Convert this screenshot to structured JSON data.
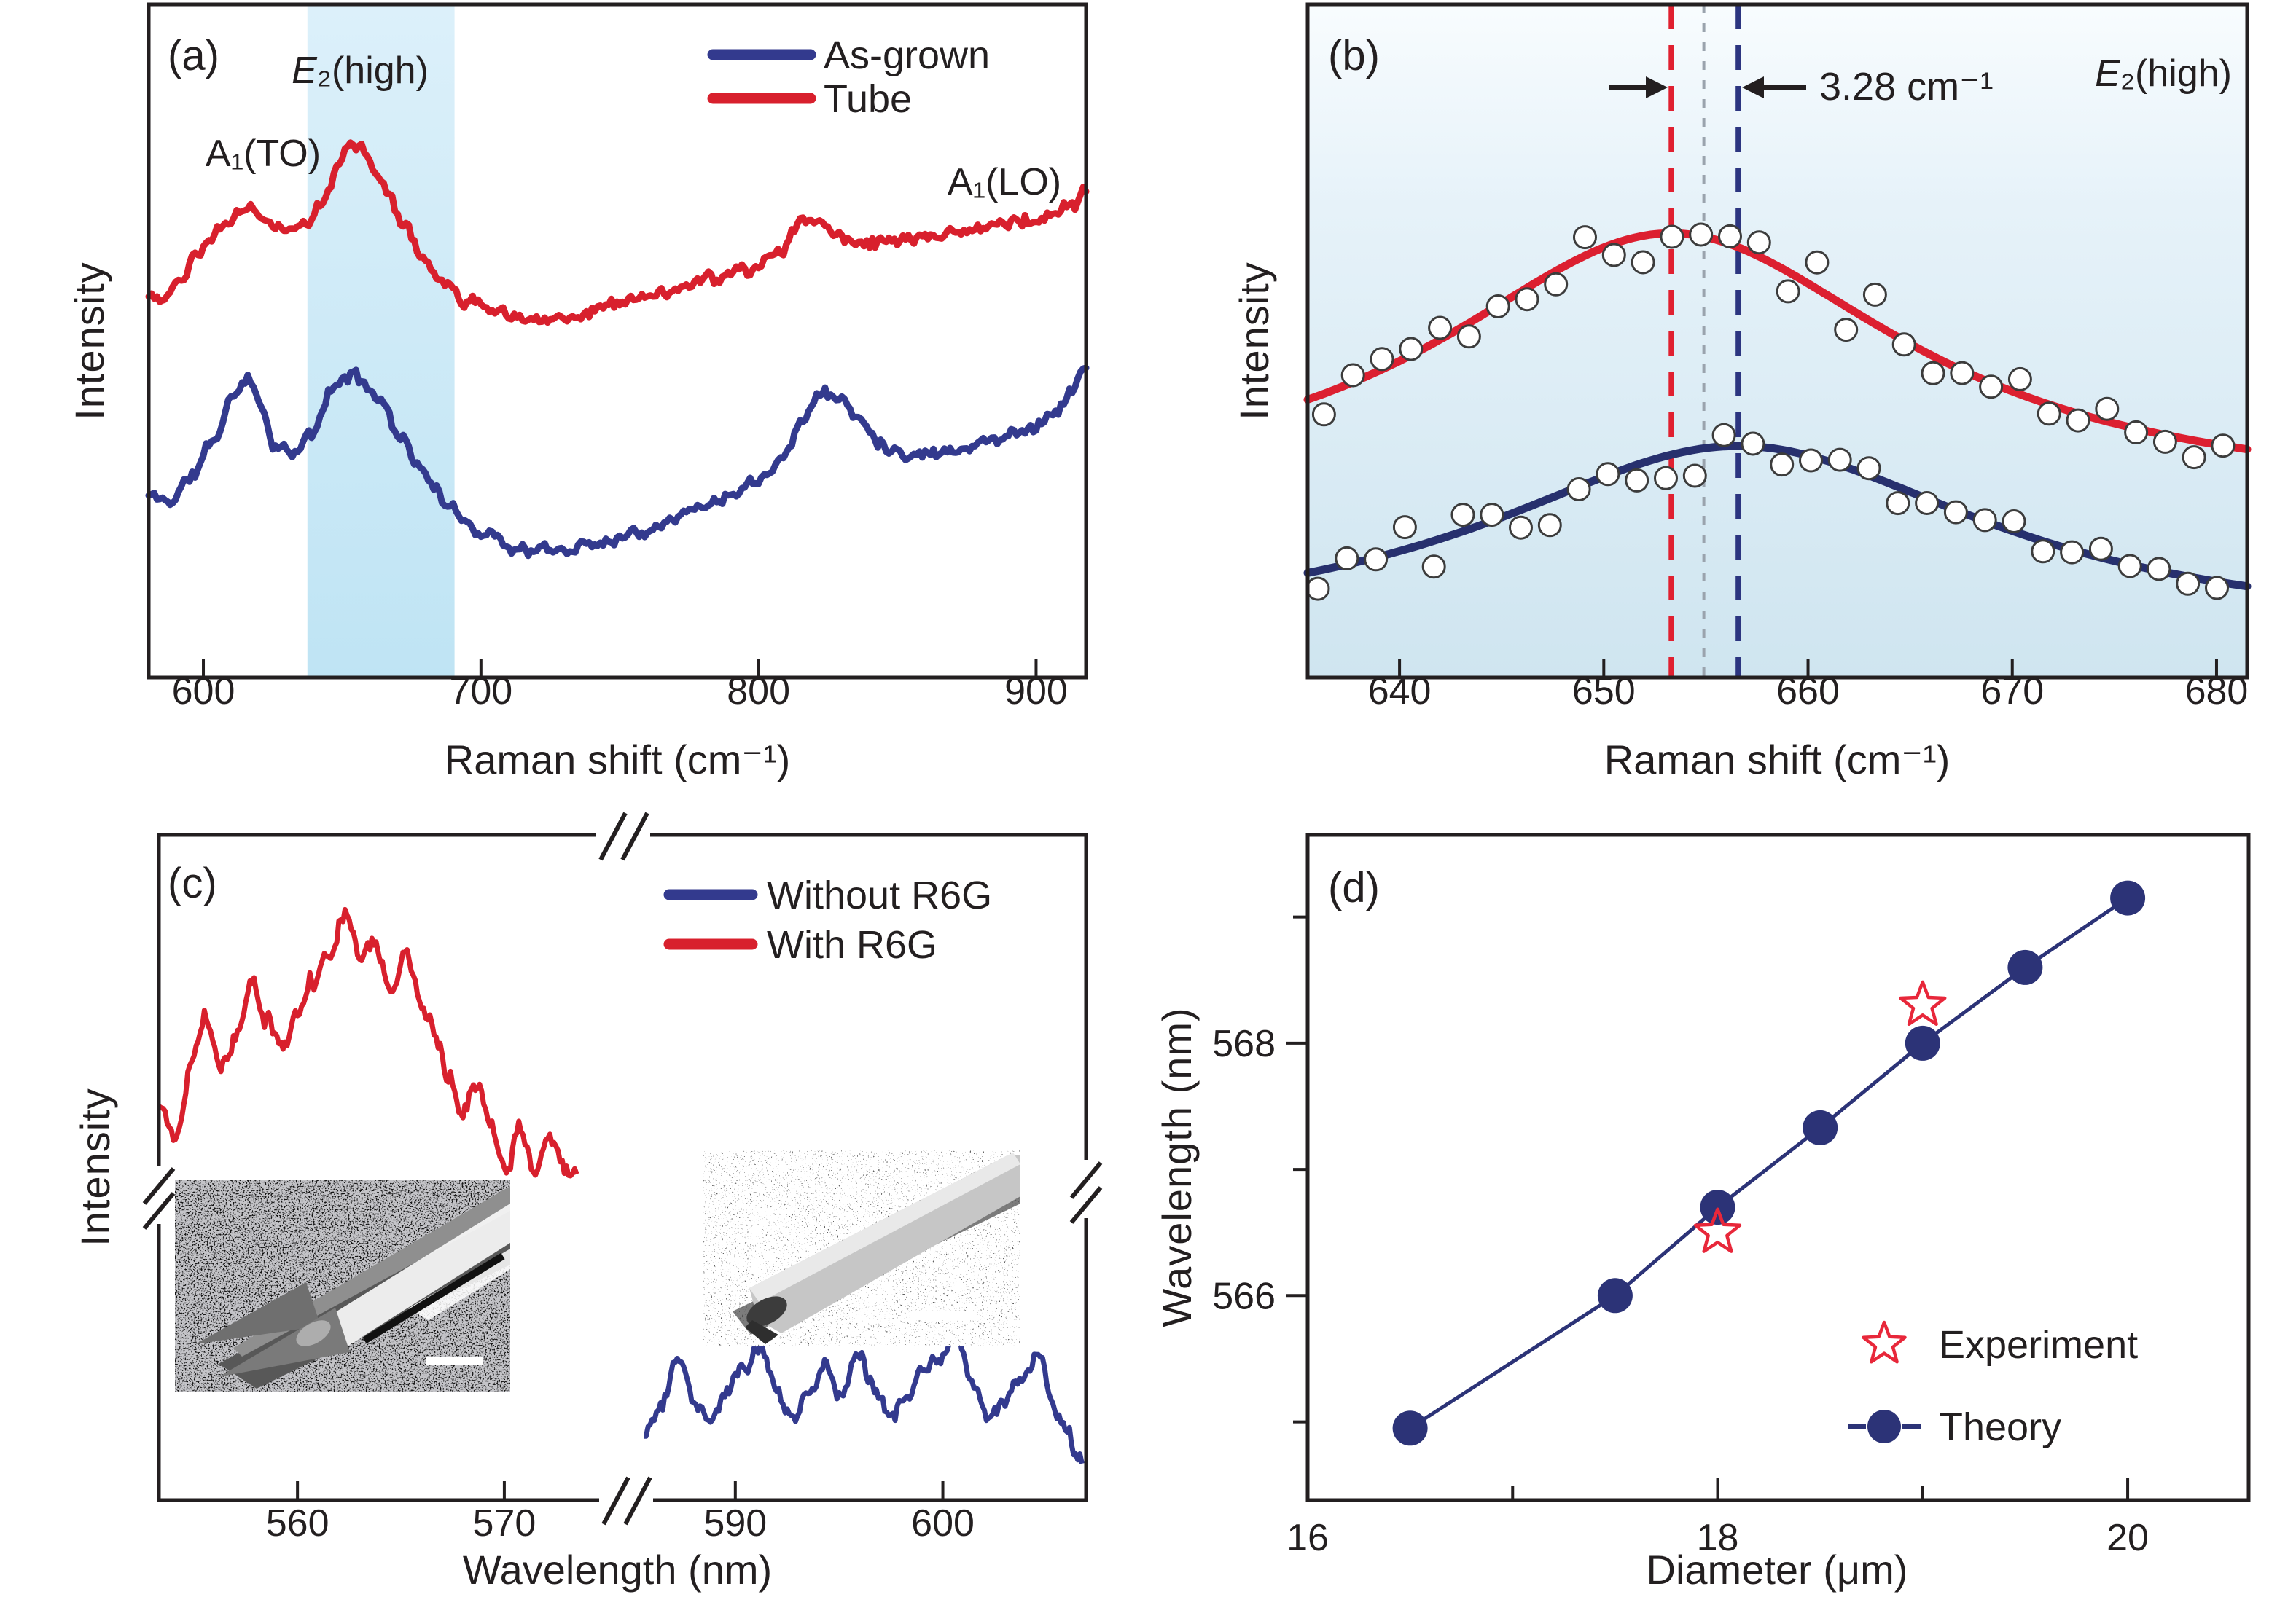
{
  "figure_background": "#ffffff",
  "text_color": "#231f20",
  "chart_data": [
    {
      "id": "a",
      "type": "line",
      "panel_label": "(a)",
      "xlabel": "Raman shift (cm⁻¹)",
      "ylabel": "Intensity",
      "x_range": [
        580.3,
        918
      ],
      "x_ticks": [
        {
          "v": 600,
          "label": "600"
        },
        {
          "v": 700,
          "label": "700"
        },
        {
          "v": 800,
          "label": "800"
        },
        {
          "v": 900,
          "label": "900"
        }
      ],
      "grid": false,
      "highlight_band": {
        "x0": 637.5,
        "x1": 690.5,
        "color_top": "#dcf0fa",
        "color_bottom": "#bfe4f4"
      },
      "peak_labels": {
        "a1to": "A₁(TO)",
        "e2_italic": "E",
        "e2_rest": "₂(high)",
        "a1lo": "A₁(LO)"
      },
      "legend": [
        {
          "label": "As-grown",
          "color": "#333a8e"
        },
        {
          "label": "Tube",
          "color": "#d8202d"
        }
      ],
      "series": [
        {
          "name": "As-grown",
          "color": "#333a8e",
          "width": 9,
          "seed": 11,
          "noise": 0.013,
          "control_points": [
            [
              580.3,
              0.27
            ],
            [
              588,
              0.262
            ],
            [
              596,
              0.3
            ],
            [
              604,
              0.355
            ],
            [
              611,
              0.42
            ],
            [
              616,
              0.45
            ],
            [
              621,
              0.4
            ],
            [
              626,
              0.345
            ],
            [
              632,
              0.33
            ],
            [
              639,
              0.36
            ],
            [
              646,
              0.425
            ],
            [
              652,
              0.45
            ],
            [
              658,
              0.44
            ],
            [
              664,
              0.41
            ],
            [
              671,
              0.36
            ],
            [
              680,
              0.3
            ],
            [
              690,
              0.245
            ],
            [
              702,
              0.215
            ],
            [
              714,
              0.19
            ],
            [
              727,
              0.188
            ],
            [
              741,
              0.2
            ],
            [
              755,
              0.215
            ],
            [
              770,
              0.24
            ],
            [
              784,
              0.262
            ],
            [
              797,
              0.29
            ],
            [
              808,
              0.325
            ],
            [
              817,
              0.39
            ],
            [
              823,
              0.425
            ],
            [
              829,
              0.415
            ],
            [
              836,
              0.385
            ],
            [
              844,
              0.35
            ],
            [
              853,
              0.332
            ],
            [
              863,
              0.335
            ],
            [
              874,
              0.342
            ],
            [
              886,
              0.355
            ],
            [
              898,
              0.372
            ],
            [
              907,
              0.395
            ],
            [
              913,
              0.425
            ],
            [
              918,
              0.46
            ]
          ]
        },
        {
          "name": "Tube",
          "color": "#d8202d",
          "width": 9,
          "seed": 23,
          "noise": 0.013,
          "control_points": [
            [
              580.3,
              0.575
            ],
            [
              585,
              0.558
            ],
            [
              591,
              0.585
            ],
            [
              598,
              0.625
            ],
            [
              606,
              0.665
            ],
            [
              612,
              0.69
            ],
            [
              617,
              0.7
            ],
            [
              621,
              0.685
            ],
            [
              626,
              0.665
            ],
            [
              631,
              0.662
            ],
            [
              637,
              0.68
            ],
            [
              643,
              0.71
            ],
            [
              649,
              0.765
            ],
            [
              653,
              0.795
            ],
            [
              656,
              0.79
            ],
            [
              661,
              0.755
            ],
            [
              666,
              0.725
            ],
            [
              672,
              0.675
            ],
            [
              679,
              0.625
            ],
            [
              686,
              0.585
            ],
            [
              694,
              0.56
            ],
            [
              703,
              0.548
            ],
            [
              713,
              0.538
            ],
            [
              723,
              0.532
            ],
            [
              734,
              0.54
            ],
            [
              746,
              0.552
            ],
            [
              758,
              0.565
            ],
            [
              771,
              0.578
            ],
            [
              784,
              0.59
            ],
            [
              797,
              0.605
            ],
            [
              808,
              0.64
            ],
            [
              816,
              0.672
            ],
            [
              821,
              0.68
            ],
            [
              827,
              0.662
            ],
            [
              835,
              0.648
            ],
            [
              845,
              0.648
            ],
            [
              856,
              0.655
            ],
            [
              867,
              0.658
            ],
            [
              878,
              0.668
            ],
            [
              890,
              0.675
            ],
            [
              900,
              0.682
            ],
            [
              908,
              0.692
            ],
            [
              914,
              0.705
            ],
            [
              918,
              0.722
            ]
          ]
        }
      ]
    },
    {
      "id": "b",
      "type": "scatter-fit",
      "panel_label": "(b)",
      "xlabel": "Raman shift (cm⁻¹)",
      "ylabel": "Intensity",
      "x_range": [
        635.5,
        681.5
      ],
      "x_ticks": [
        {
          "v": 640,
          "label": "640"
        },
        {
          "v": 650,
          "label": "650"
        },
        {
          "v": 660,
          "label": "660"
        },
        {
          "v": 670,
          "label": "670"
        },
        {
          "v": 680,
          "label": "680"
        }
      ],
      "corner_label": {
        "e2_italic": "E",
        "e2_rest": "₂(high)"
      },
      "peak_shift": {
        "label": "3.28 cm⁻¹",
        "value_cm": 3.28
      },
      "background_gradient": [
        "#f8fcfe",
        "#e6f2f9",
        "#cfe5f0"
      ],
      "vlines": [
        {
          "x": 653.3,
          "color": "#e02030",
          "dash": "34 22",
          "width": 7,
          "name": "tube-peak-dashed-line"
        },
        {
          "x": 654.9,
          "color": "#9aa3ad",
          "dash": "12 14",
          "width": 4,
          "name": "reference-dotted-line"
        },
        {
          "x": 656.58,
          "color": "#2c3580",
          "dash": "34 22",
          "width": 7,
          "name": "asgrown-peak-dashed-line"
        }
      ],
      "marker": {
        "shape": "circle",
        "radius": 15,
        "stroke": "#3c3c3c",
        "fill": "#ffffff"
      },
      "series": [
        {
          "name": "Tube fit",
          "color": "#dc1f30",
          "width": 11,
          "lorentzian": {
            "center": 653.3,
            "gamma": 14,
            "amp": 0.4,
            "base": 0.26
          },
          "scatter": {
            "x_start": 636.3,
            "x_step": 1.42,
            "count": 32,
            "seed": 19,
            "jitter": 0.05
          }
        },
        {
          "name": "As-grown fit",
          "color": "#27306e",
          "width": 11,
          "lorentzian": {
            "center": 656.58,
            "gamma": 15,
            "amp": 0.284,
            "base": 0.06
          },
          "scatter": {
            "x_start": 636.0,
            "x_step": 1.42,
            "count": 32,
            "seed": 77,
            "jitter": 0.05
          }
        }
      ]
    },
    {
      "id": "c",
      "type": "line",
      "panel_label": "(c)",
      "xlabel": "Wavelength (nm)",
      "ylabel": "Intensity",
      "axis_breaks": true,
      "segments": [
        {
          "x_range": [
            553.3,
            575.5
          ]
        },
        {
          "x_range": [
            585.3,
            606.9
          ]
        }
      ],
      "x_ticks": [
        {
          "seg": 0,
          "v": 560,
          "label": "560"
        },
        {
          "seg": 0,
          "v": 570,
          "label": "570"
        },
        {
          "seg": 1,
          "v": 590,
          "label": "590"
        },
        {
          "seg": 1,
          "v": 600,
          "label": "600"
        }
      ],
      "legend": [
        {
          "label": "Without R6G",
          "color": "#333a8e"
        },
        {
          "label": "With R6G",
          "color": "#d8202d"
        }
      ],
      "series": [
        {
          "name": "With R6G",
          "seg": 0,
          "color": "#d8202d",
          "width": 7,
          "seed": 41,
          "noise": 0.02,
          "control_points": [
            [
              553.3,
              0.585
            ],
            [
              554.1,
              0.545
            ],
            [
              554.9,
              0.665
            ],
            [
              555.6,
              0.73
            ],
            [
              556.3,
              0.645
            ],
            [
              557.1,
              0.7
            ],
            [
              557.8,
              0.775
            ],
            [
              558.5,
              0.72
            ],
            [
              559.3,
              0.685
            ],
            [
              560.1,
              0.73
            ],
            [
              560.8,
              0.785
            ],
            [
              561.6,
              0.83
            ],
            [
              562.3,
              0.885
            ],
            [
              563.1,
              0.81
            ],
            [
              563.8,
              0.835
            ],
            [
              564.5,
              0.765
            ],
            [
              565.2,
              0.825
            ],
            [
              565.9,
              0.755
            ],
            [
              566.6,
              0.705
            ],
            [
              567.3,
              0.645
            ],
            [
              568.0,
              0.585
            ],
            [
              568.7,
              0.625
            ],
            [
              569.4,
              0.555
            ],
            [
              570.1,
              0.495
            ],
            [
              570.7,
              0.555
            ],
            [
              571.4,
              0.495
            ],
            [
              572.1,
              0.545
            ],
            [
              572.8,
              0.5
            ],
            [
              573.5,
              0.49
            ]
          ]
        },
        {
          "name": "Without R6G",
          "seg": 1,
          "color": "#333a8e",
          "width": 7,
          "seed": 63,
          "noise": 0.016,
          "control_points": [
            [
              585.6,
              0.105
            ],
            [
              586.4,
              0.145
            ],
            [
              587.2,
              0.205
            ],
            [
              588.0,
              0.15
            ],
            [
              588.8,
              0.12
            ],
            [
              589.6,
              0.16
            ],
            [
              590.4,
              0.2
            ],
            [
              591.2,
              0.235
            ],
            [
              592.0,
              0.165
            ],
            [
              592.8,
              0.125
            ],
            [
              593.6,
              0.17
            ],
            [
              594.4,
              0.205
            ],
            [
              595.1,
              0.16
            ],
            [
              595.9,
              0.225
            ],
            [
              596.7,
              0.17
            ],
            [
              597.5,
              0.125
            ],
            [
              598.3,
              0.16
            ],
            [
              599.1,
              0.195
            ],
            [
              599.9,
              0.215
            ],
            [
              600.6,
              0.255
            ],
            [
              601.4,
              0.175
            ],
            [
              602.2,
              0.125
            ],
            [
              603.0,
              0.15
            ],
            [
              603.8,
              0.185
            ],
            [
              604.6,
              0.215
            ],
            [
              605.3,
              0.145
            ],
            [
              606.0,
              0.095
            ],
            [
              606.7,
              0.055
            ]
          ]
        }
      ],
      "insets": [
        {
          "name": "SEM image of as-grown rod",
          "scale_bar": true
        },
        {
          "name": "SEM image of microtube",
          "scale_bar": true
        }
      ]
    },
    {
      "id": "d",
      "type": "line-scatter",
      "panel_label": "(d)",
      "xlabel": "Diameter (μm)",
      "ylabel": "Wavelength (nm)",
      "x_range": [
        16,
        20.59
      ],
      "y_range": [
        564.38,
        569.65
      ],
      "x_ticks": [
        {
          "v": 16,
          "label": "16"
        },
        {
          "v": 17
        },
        {
          "v": 18,
          "label": "18"
        },
        {
          "v": 19
        },
        {
          "v": 20,
          "label": "20"
        }
      ],
      "y_ticks": [
        {
          "v": 565
        },
        {
          "v": 566,
          "label": "566"
        },
        {
          "v": 567
        },
        {
          "v": 568,
          "label": "568"
        },
        {
          "v": 569
        }
      ],
      "series": [
        {
          "name": "Theory",
          "color": "#2c3377",
          "marker": "circle",
          "marker_radius": 24,
          "line_width": 5,
          "points": [
            [
              16.5,
              564.95
            ],
            [
              17.5,
              566.0
            ],
            [
              18,
              566.7
            ],
            [
              18.5,
              567.33
            ],
            [
              19,
              568.0
            ],
            [
              19.5,
              568.6
            ],
            [
              20,
              569.15
            ]
          ]
        },
        {
          "name": "Experiment",
          "color": "#e8273a",
          "marker": "star",
          "marker_radius": 32,
          "stroke_width": 4.5,
          "points": [
            [
              18,
              566.5
            ],
            [
              19,
              568.3
            ]
          ]
        }
      ],
      "legend": [
        {
          "label": "Experiment",
          "marker": "star"
        },
        {
          "label": "Theory",
          "marker": "circle-line"
        }
      ]
    }
  ]
}
